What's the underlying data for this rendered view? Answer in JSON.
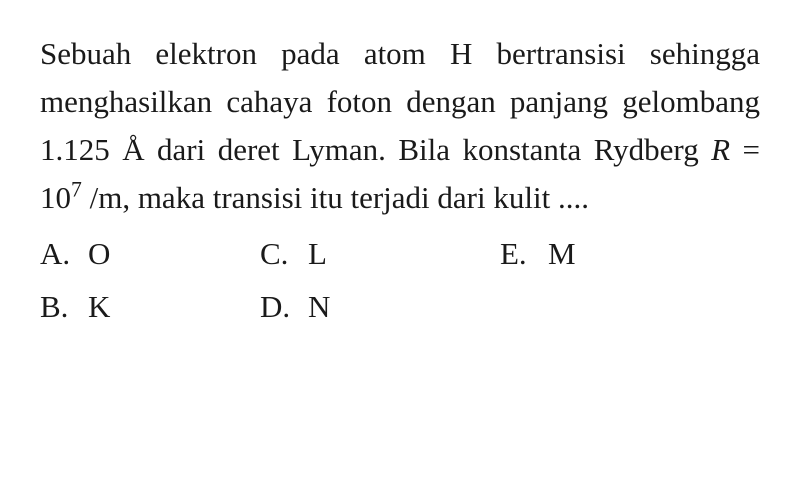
{
  "question": {
    "line1": "Sebuah elektron pada atom H bertransisi",
    "line2": "sehingga menghasilkan cahaya foton",
    "line3": "dengan panjang gelombang 1.125 Å dari",
    "line4": "deret Lyman. Bila konstanta Rydberg",
    "line5_prefix": "R",
    "line5_eq": " = 10",
    "line5_sup": "7",
    "line5_suffix": " /m, maka transisi itu terjadi dari",
    "line6": "kulit ...."
  },
  "options": {
    "a": {
      "letter": "A.",
      "value": "O"
    },
    "b": {
      "letter": "B.",
      "value": "K"
    },
    "c": {
      "letter": "C.",
      "value": "L"
    },
    "d": {
      "letter": "D.",
      "value": "N"
    },
    "e": {
      "letter": "E.",
      "value": "M"
    }
  },
  "style": {
    "background_color": "#ffffff",
    "text_color": "#1a1a1a",
    "font_family": "Times New Roman",
    "font_size_pt": 23,
    "line_height": 1.55
  }
}
